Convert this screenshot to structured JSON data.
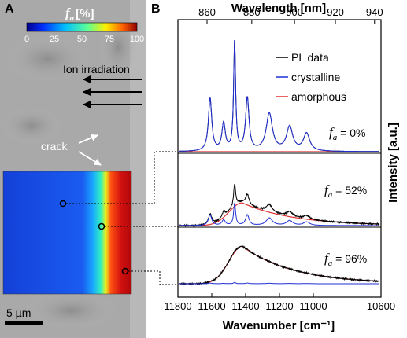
{
  "panel_a": {
    "label": "A",
    "colorbar": {
      "title_symbol": "f",
      "title_sub": "a",
      "title_unit": "[%]",
      "ticks": [
        0,
        25,
        50,
        75,
        100
      ],
      "colors": [
        "#00008f",
        "#0030ff",
        "#00c0ff",
        "#5dff95",
        "#ffee00",
        "#ff6000",
        "#8f0000"
      ]
    },
    "annotations": {
      "ion_irradiation": "Ion irradiation",
      "crack": "crack"
    },
    "scale_bar": "5 µm",
    "map_region": "false-color f_a map showing crystalline (blue) to amorphous (red) transition near the crack"
  },
  "chart_data": {
    "label": "B",
    "type": "line",
    "xlabel": "Wavenumber [cm⁻¹]",
    "x2label": "Wavelength [nm]",
    "ylabel": "Intensity [a.u.]",
    "xlim": [
      11800,
      10600
    ],
    "x_ticks": [
      11800,
      11600,
      11400,
      11200,
      11000,
      10600
    ],
    "x2_ticks": [
      860,
      880,
      900,
      920,
      940
    ],
    "legend_position": "top-right",
    "legend": [
      {
        "name": "PL data",
        "color": "#000000"
      },
      {
        "name": "crystalline",
        "color": "#1f2fd6"
      },
      {
        "name": "amorphous",
        "color": "#e03030"
      }
    ],
    "panels": [
      {
        "label_symbol": "f",
        "label_sub": "a",
        "label_value": " = 0%",
        "crystalline_peaks": [
          [
            11610,
            0.48
          ],
          [
            11530,
            0.25
          ],
          [
            11465,
            1.0
          ],
          [
            11390,
            0.48
          ],
          [
            11260,
            0.34
          ],
          [
            11140,
            0.22
          ],
          [
            11040,
            0.16
          ]
        ],
        "amorphous_scale": 0.0,
        "crystalline_scale": 1.0
      },
      {
        "label_symbol": "f",
        "label_sub": "a",
        "label_value": " = 52%",
        "crystalline_peaks": [
          [
            11610,
            0.48
          ],
          [
            11530,
            0.25
          ],
          [
            11465,
            1.0
          ],
          [
            11390,
            0.48
          ],
          [
            11260,
            0.34
          ],
          [
            11140,
            0.22
          ],
          [
            11040,
            0.16
          ]
        ],
        "amorphous_scale": 0.34,
        "crystalline_scale": 0.33
      },
      {
        "label_symbol": "f",
        "label_sub": "a",
        "label_value": " = 96%",
        "crystalline_peaks": [
          [
            11610,
            0.48
          ],
          [
            11530,
            0.25
          ],
          [
            11465,
            1.0
          ],
          [
            11390,
            0.48
          ],
          [
            11260,
            0.34
          ],
          [
            11140,
            0.22
          ],
          [
            11040,
            0.16
          ]
        ],
        "amorphous_scale": 0.53,
        "crystalline_scale": 0.02
      }
    ],
    "amorphous_band": {
      "center": 11420,
      "rise_width": 110,
      "decay_width": 320,
      "onset": 11700
    }
  }
}
